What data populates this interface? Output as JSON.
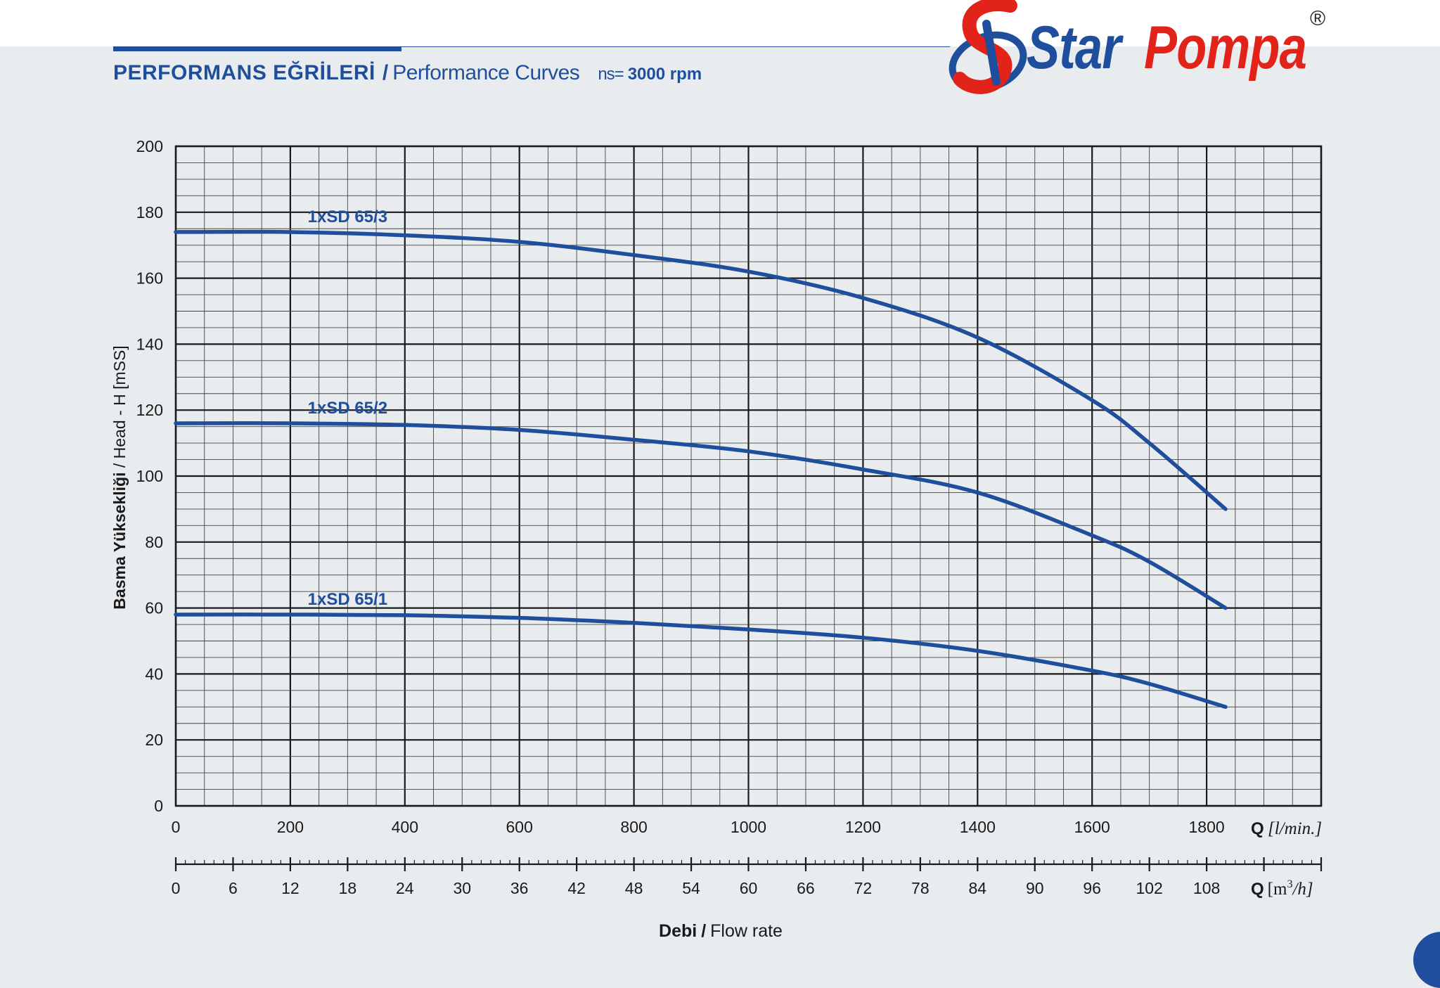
{
  "header": {
    "title_tr": "PERFORMANS EĞRİLERİ",
    "separator": "/",
    "title_en": "Performance Curves",
    "speed_prefix": "ns=",
    "speed_value": "3000 rpm"
  },
  "logo": {
    "brand_a": "Star",
    "brand_b": "Pompa",
    "registered": "®",
    "colors": {
      "blue": "#1f4f9c",
      "red": "#e2231a"
    }
  },
  "chart_data": {
    "type": "line",
    "ylabel": "Basma Yüksekliği / Head - H [mSS]",
    "xlabel_bold": "Debi",
    "xlabel_sep": "/",
    "xlabel_rest": "Flow rate",
    "x_unit_primary": {
      "q": "Q",
      "unit": "[l/min.]"
    },
    "x_unit_secondary": {
      "q": "Q",
      "unit_open": "[m",
      "unit_sup": "3",
      "unit_close": "/h]"
    },
    "xlim": [
      0,
      2000
    ],
    "ylim": [
      0,
      200
    ],
    "x_ticks": [
      "0",
      "200",
      "400",
      "600",
      "800",
      "1000",
      "1200",
      "1400",
      "1600",
      "1800"
    ],
    "y_ticks": [
      "0",
      "20",
      "40",
      "60",
      "80",
      "100",
      "120",
      "140",
      "160",
      "180",
      "200"
    ],
    "secondary_x_ticks": [
      "0",
      "6",
      "12",
      "18",
      "24",
      "30",
      "36",
      "42",
      "48",
      "54",
      "60",
      "66",
      "72",
      "78",
      "84",
      "90",
      "96",
      "102",
      "108"
    ],
    "grid": true,
    "line_color": "#1f4f9c",
    "series": [
      {
        "name": "1xSD 65/3",
        "x": [
          0,
          200,
          400,
          600,
          800,
          1000,
          1200,
          1400,
          1600,
          1700,
          1833
        ],
        "y": [
          174,
          174,
          173,
          171,
          167,
          162,
          154,
          142,
          123,
          110,
          90
        ]
      },
      {
        "name": "1xSD 65/2",
        "x": [
          0,
          200,
          400,
          600,
          800,
          1000,
          1200,
          1400,
          1600,
          1700,
          1833
        ],
        "y": [
          116,
          116,
          115.5,
          114,
          111,
          107.5,
          102,
          95,
          82,
          74,
          60
        ]
      },
      {
        "name": "1xSD 65/1",
        "x": [
          0,
          200,
          400,
          600,
          800,
          1000,
          1200,
          1400,
          1600,
          1700,
          1833
        ],
        "y": [
          58,
          58,
          57.8,
          57,
          55.5,
          53.5,
          51,
          47,
          41,
          37,
          30
        ]
      }
    ]
  }
}
